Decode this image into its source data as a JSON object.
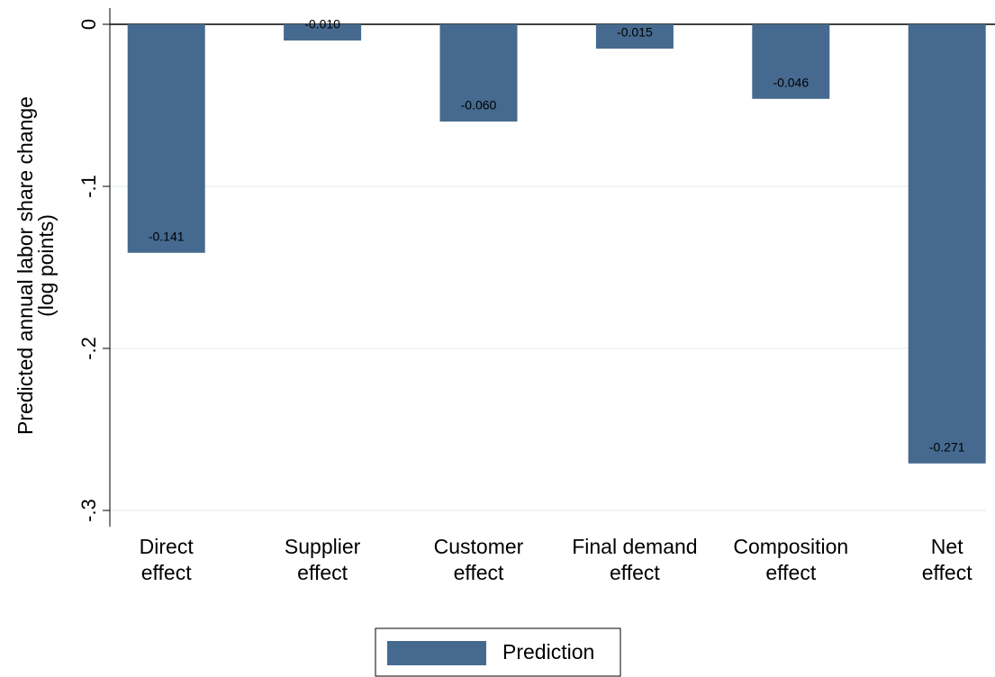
{
  "chart_data": {
    "type": "bar",
    "y_label": [
      "Predicted annual labor share change",
      "(log points)"
    ],
    "categories": [
      [
        "Direct",
        "effect"
      ],
      [
        "Supplier",
        "effect"
      ],
      [
        "Customer",
        "effect"
      ],
      [
        "Final demand",
        "effect"
      ],
      [
        "Composition",
        "effect"
      ],
      [
        "Net",
        "effect"
      ]
    ],
    "series": [
      {
        "name": "Prediction",
        "color": "#466a8f",
        "values": [
          -0.141,
          -0.01,
          -0.06,
          -0.015,
          -0.046,
          -0.271
        ],
        "value_labels": [
          "-0.141",
          "-0.010",
          "-0.060",
          "-0.015",
          "-0.046",
          "-0.271"
        ]
      }
    ],
    "ylim": [
      -0.31,
      0.01
    ],
    "yticks": [
      0,
      {
        "value": -0.1,
        "label": "-.1"
      },
      {
        "value": -0.2,
        "label": "-.2"
      },
      {
        "value": -0.3,
        "label": "-.3"
      }
    ],
    "grid": true,
    "legend": "bottom"
  }
}
